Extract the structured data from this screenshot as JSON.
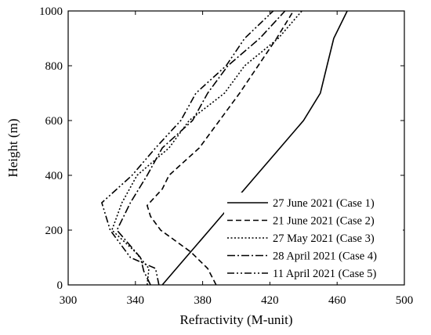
{
  "chart_data": {
    "type": "line",
    "xlabel": "Refractivity (M-unit)",
    "ylabel": "Height (m)",
    "xlim": [
      300,
      500
    ],
    "ylim": [
      0,
      1000
    ],
    "xticks": [
      300,
      340,
      380,
      420,
      460,
      500
    ],
    "yticks": [
      0,
      200,
      400,
      600,
      800,
      1000
    ],
    "grid": false,
    "legend_position": "bottom-right",
    "series": [
      {
        "name": "27 June 2021 (Case 1)",
        "style": "solid",
        "points": [
          [
            356,
            0
          ],
          [
            370,
            100
          ],
          [
            384,
            200
          ],
          [
            398,
            300
          ],
          [
            412,
            400
          ],
          [
            426,
            500
          ],
          [
            440,
            600
          ],
          [
            450,
            700
          ],
          [
            454,
            800
          ],
          [
            458,
            900
          ],
          [
            466,
            1000
          ]
        ]
      },
      {
        "name": "21 June 2021 (Case 2)",
        "style": "dashed",
        "points": [
          [
            388,
            0
          ],
          [
            383,
            60
          ],
          [
            373,
            120
          ],
          [
            355,
            200
          ],
          [
            349,
            250
          ],
          [
            347,
            290
          ],
          [
            356,
            350
          ],
          [
            360,
            400
          ],
          [
            378,
            500
          ],
          [
            390,
            600
          ],
          [
            402,
            700
          ],
          [
            413,
            800
          ],
          [
            424,
            900
          ],
          [
            434,
            1000
          ]
        ]
      },
      {
        "name": "27 May 2021 (Case 3)",
        "style": "dotted",
        "points": [
          [
            347,
            0
          ],
          [
            348,
            60
          ],
          [
            340,
            120
          ],
          [
            326,
            200
          ],
          [
            332,
            300
          ],
          [
            341,
            400
          ],
          [
            360,
            500
          ],
          [
            372,
            600
          ],
          [
            393,
            700
          ],
          [
            405,
            800
          ],
          [
            425,
            900
          ],
          [
            439,
            1000
          ]
        ]
      },
      {
        "name": "28 April 2021 (Case 4)",
        "style": "dashdot",
        "points": [
          [
            349,
            0
          ],
          [
            345,
            50
          ],
          [
            343,
            100
          ],
          [
            329,
            200
          ],
          [
            337,
            300
          ],
          [
            347,
            400
          ],
          [
            356,
            500
          ],
          [
            374,
            600
          ],
          [
            383,
            700
          ],
          [
            395,
            800
          ],
          [
            414,
            900
          ],
          [
            429,
            1000
          ]
        ]
      },
      {
        "name": "11 April 2021 (Case 5)",
        "style": "dashdotdot",
        "points": [
          [
            354,
            0
          ],
          [
            352,
            60
          ],
          [
            337,
            100
          ],
          [
            325,
            200
          ],
          [
            320,
            300
          ],
          [
            338,
            400
          ],
          [
            352,
            500
          ],
          [
            367,
            600
          ],
          [
            376,
            700
          ],
          [
            394,
            800
          ],
          [
            405,
            900
          ],
          [
            422,
            1000
          ]
        ]
      }
    ]
  }
}
